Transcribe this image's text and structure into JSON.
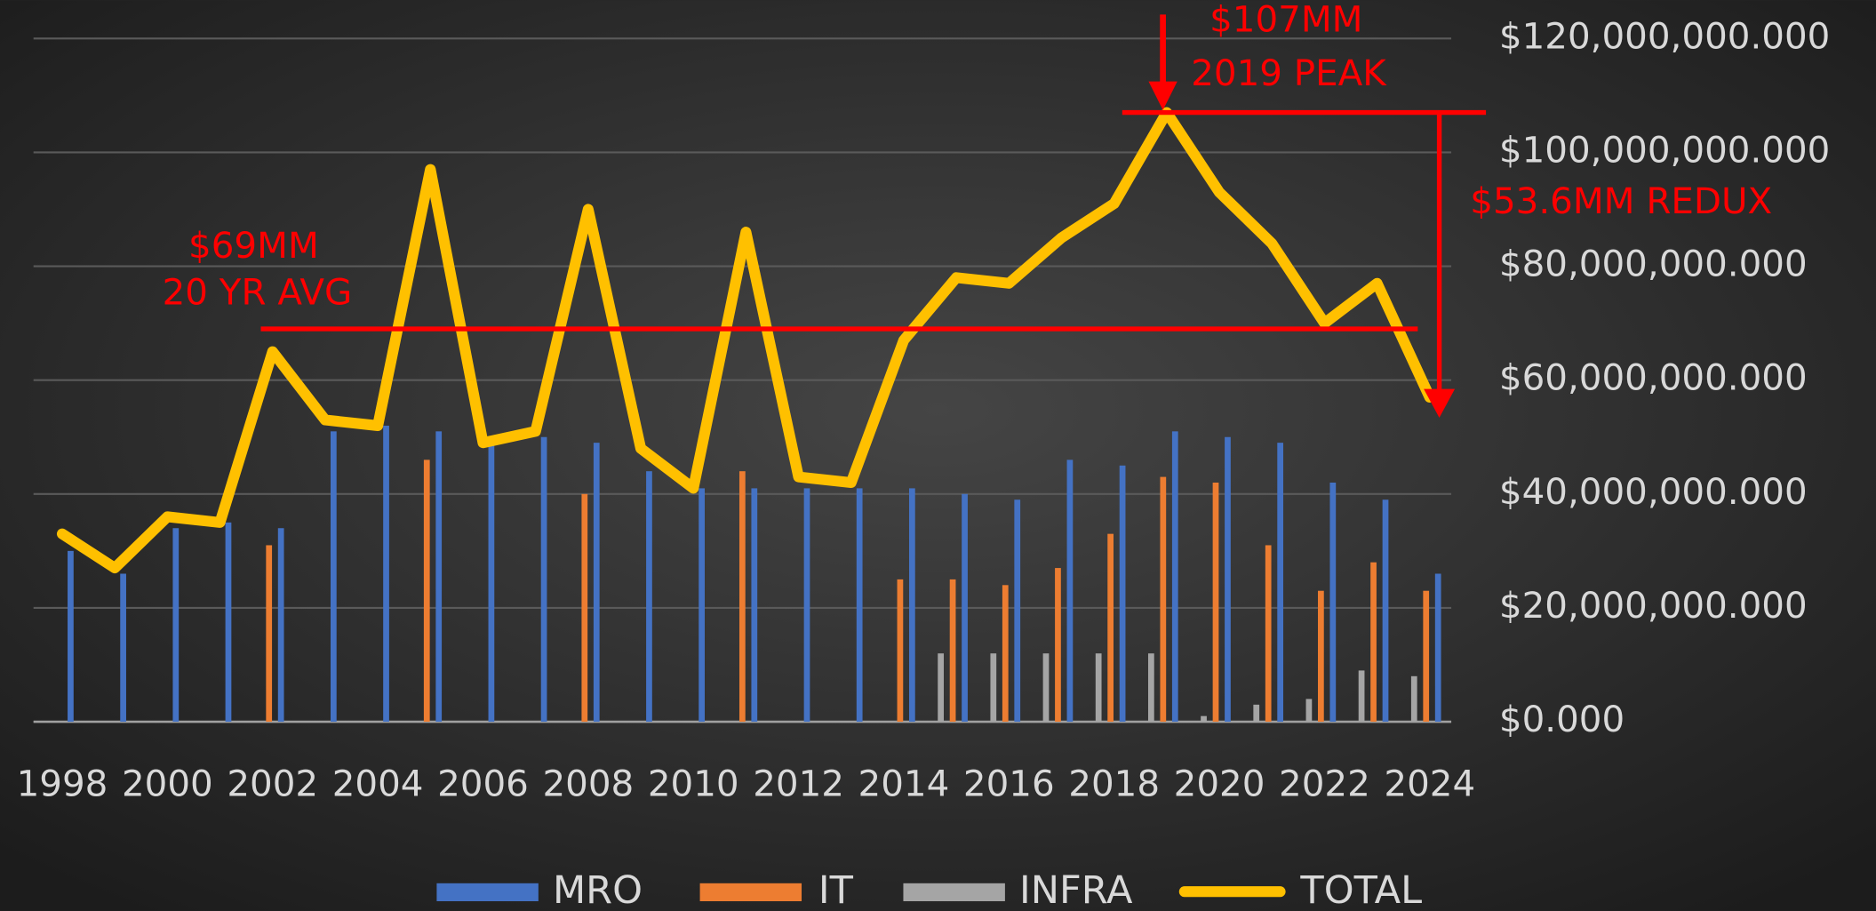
{
  "chart_data": {
    "type": "bar",
    "categories": [
      "1998",
      null,
      "2000",
      null,
      "2002",
      null,
      "2004",
      null,
      "2006",
      null,
      "2008",
      null,
      "2010",
      null,
      "2012",
      null,
      "2014",
      null,
      "2016",
      null,
      "2018",
      null,
      "2020",
      null,
      "2022",
      null,
      "2024"
    ],
    "series": [
      {
        "name": "MRO",
        "color": "#4472c4",
        "values": [
          30000000,
          26000000,
          34000000,
          35000000,
          34000000,
          51000000,
          52000000,
          51000000,
          49000000,
          50000000,
          49000000,
          44000000,
          41000000,
          41000000,
          41000000,
          41000000,
          41000000,
          40000000,
          39000000,
          46000000,
          45000000,
          51000000,
          50000000,
          49000000,
          42000000,
          39000000,
          26000000
        ]
      },
      {
        "name": "IT",
        "color": "#ed7d31",
        "values": [
          null,
          null,
          null,
          null,
          31000000,
          null,
          null,
          46000000,
          null,
          null,
          40000000,
          null,
          null,
          44000000,
          null,
          null,
          25000000,
          25000000,
          24000000,
          27000000,
          33000000,
          43000000,
          42000000,
          31000000,
          23000000,
          28000000,
          23000000
        ]
      },
      {
        "name": "INFRA",
        "color": "#a5a5a5",
        "values": [
          null,
          null,
          null,
          null,
          null,
          null,
          null,
          null,
          null,
          null,
          null,
          null,
          null,
          null,
          null,
          null,
          null,
          12000000,
          12000000,
          12000000,
          12000000,
          12000000,
          1000000,
          3000000,
          4000000,
          9000000,
          8000000
        ]
      },
      {
        "name": "TOTAL",
        "type": "line",
        "color": "#ffc000",
        "values": [
          33000000,
          27000000,
          36000000,
          35000000,
          65000000,
          53000000,
          52000000,
          97000000,
          49000000,
          51000000,
          90000000,
          48000000,
          41000000,
          86000000,
          43000000,
          42000000,
          67000000,
          78000000,
          77000000,
          85000000,
          91000000,
          107000000,
          93000000,
          84000000,
          70000000,
          77000000,
          57000000
        ]
      }
    ],
    "ylim": [
      0,
      120000000
    ],
    "yticks": [
      {
        "value": 0,
        "label": "$0.000"
      },
      {
        "value": 20000000,
        "label": "$20,000,000.000"
      },
      {
        "value": 40000000,
        "label": "$40,000,000.000"
      },
      {
        "value": 60000000,
        "label": "$60,000,000.000"
      },
      {
        "value": 80000000,
        "label": "$80,000,000.000"
      },
      {
        "value": 100000000,
        "label": "$100,000,000.000"
      },
      {
        "value": 120000000,
        "label": "$120,000,000.000"
      }
    ],
    "grid": true,
    "legend": "bottom",
    "annotations": {
      "peak_value": 107000000,
      "peak_amount": "$107MM",
      "peak_label": "2019 PEAK",
      "avg_value": 69000000,
      "avg_amount": "$69MM",
      "avg_label": "20 YR AVG",
      "redux_value": 53600000,
      "redux_label": "$53.6MM REDUX",
      "color": "#ff0000"
    }
  }
}
